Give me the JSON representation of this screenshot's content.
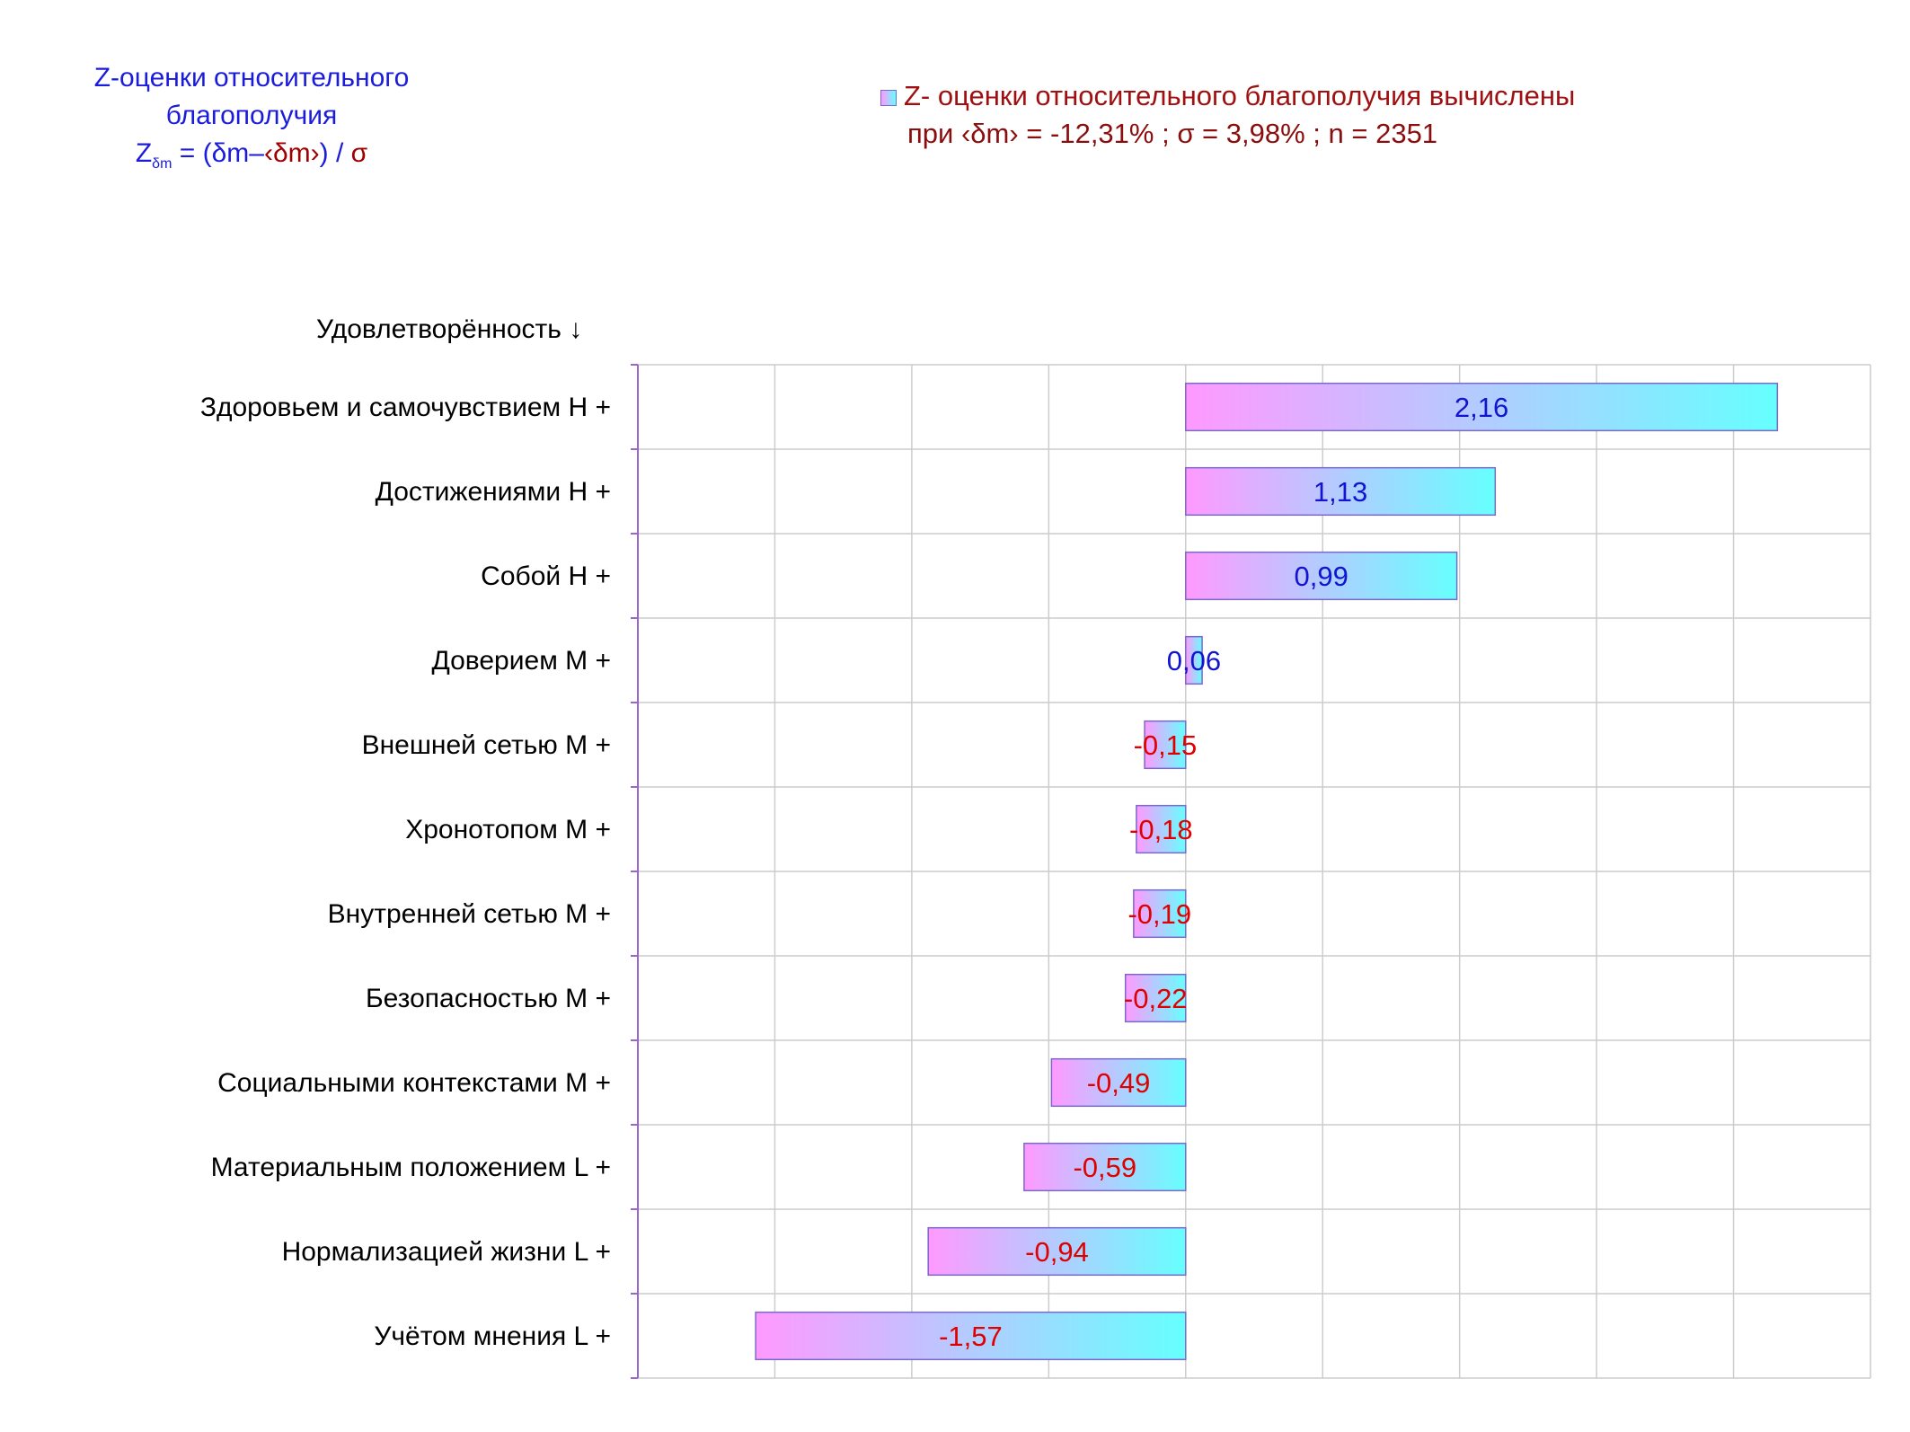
{
  "title": {
    "line1": "Z-оценки  относительного",
    "line2": "благополучия",
    "formula_z": "Z",
    "formula_sub": "δm",
    "formula_eq": " = (δm–",
    "formula_mean": "‹δm›",
    "formula_close": ") /",
    "formula_sigma": "σ"
  },
  "legend": {
    "line1": "Z- оценки относительного благополучия вычислены",
    "line2": "при ‹δm› = -12,31% ; σ = 3,98% ; n = 2351"
  },
  "chart_data": {
    "type": "bar",
    "orientation": "horizontal",
    "ylabel": "Удовлетворённость ↓",
    "categories": [
      "Здоровьем и самочувствием  H +",
      "Достижениями  H +",
      "Собой  H +",
      "Доверием  M +",
      "Внешней сетью  M +",
      "Хронотопом  M +",
      "Внутренней сетью  M +",
      "Безопасностью  M +",
      "Социальными контекстами  M +",
      "Материальным положением  L +",
      "Нормализацией жизни  L +",
      "Учётом мнения  L +"
    ],
    "values": [
      2.16,
      1.13,
      0.99,
      0.06,
      -0.15,
      -0.18,
      -0.19,
      -0.22,
      -0.49,
      -0.59,
      -0.94,
      -1.57
    ],
    "value_labels": [
      "2,16",
      "1,13",
      "0,99",
      "0,06",
      "-0,15",
      "-0,18",
      "-0,19",
      "-0,22",
      "-0,49",
      "-0,59",
      "-0,94",
      "-1,57"
    ],
    "xlim": [
      -2,
      2.5
    ],
    "grid": true,
    "legend_position": "top-right",
    "colors": {
      "bar_start": "#ff99ff",
      "bar_end": "#66ffff",
      "positive_label": "#1313d0",
      "negative_label": "#e00000",
      "axis": "#9966cc",
      "grid": "#cccccc"
    }
  }
}
